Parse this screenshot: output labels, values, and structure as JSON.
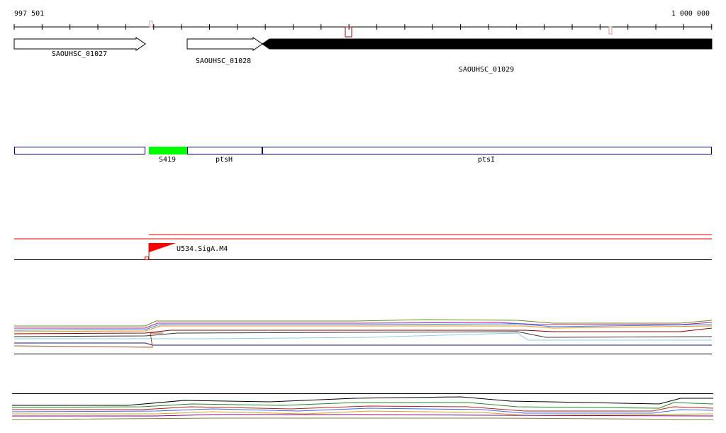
{
  "ruler": {
    "start": "997 501",
    "end": "1 000 000"
  },
  "genes": [
    {
      "label": "SAOUHSC_01027"
    },
    {
      "label": "SAOUHSC_01028"
    },
    {
      "label": "SAOUHSC_01029"
    }
  ],
  "features": [
    {
      "label": "S419"
    },
    {
      "label": "ptsH"
    },
    {
      "label": "ptsI"
    }
  ],
  "promoters": [
    {
      "label": "U534.SigA.M4"
    }
  ]
}
